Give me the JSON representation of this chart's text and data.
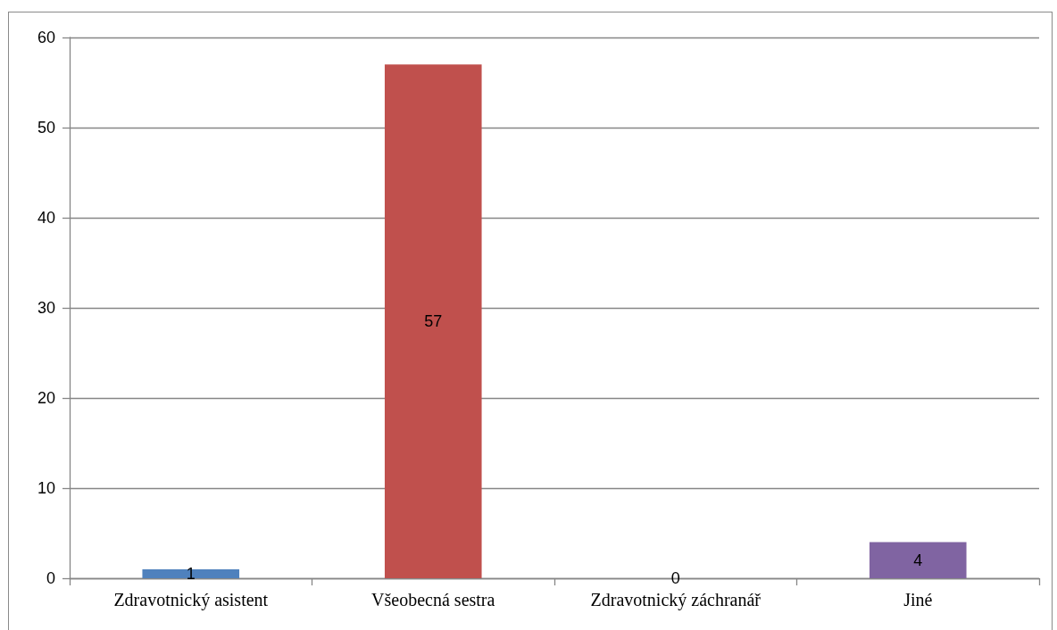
{
  "chart_data": {
    "type": "bar",
    "categories": [
      "Zdravotnický asistent",
      "Všeobecná sestra",
      "Zdravotnický záchranář",
      "Jiné"
    ],
    "values": [
      1,
      57,
      0,
      4
    ],
    "colors": [
      "#4f81bd",
      "#c0504d",
      null,
      "#8064a2"
    ],
    "ylim": [
      0,
      60
    ],
    "yticks": [
      0,
      10,
      20,
      30,
      40,
      50,
      60
    ],
    "grid": "y",
    "data_labels": true
  }
}
